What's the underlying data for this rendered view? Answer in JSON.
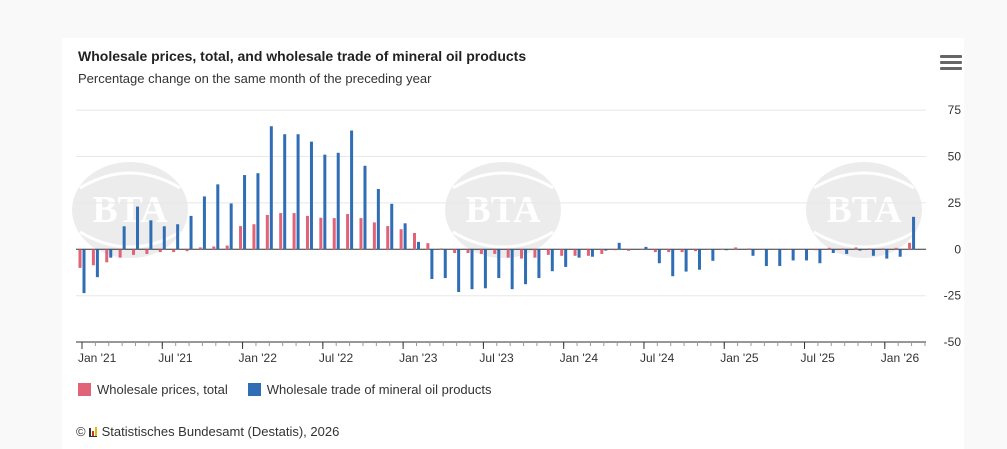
{
  "header": {
    "title": "Wholesale prices, total, and wholesale trade of mineral oil products",
    "subtitle": "Percentage change on the same month of the preceding year",
    "menu_icon": "hamburger-menu-icon"
  },
  "legend": [
    {
      "label": "Wholesale prices, total",
      "color": "#e06377"
    },
    {
      "label": "Wholesale trade of mineral oil products",
      "color": "#2f6db5"
    }
  ],
  "credits": {
    "copyright": "©",
    "text": "Statistisches Bundesamt (Destatis), 2026"
  },
  "watermark": "BTA",
  "chart_data": {
    "type": "bar",
    "title": "Wholesale prices, total, and wholesale trade of mineral oil products",
    "subtitle": "Percentage change on the same month of the preceding year",
    "xlabel": "",
    "ylabel": "",
    "ylim": [
      -50,
      75
    ],
    "y_ticks": [
      75,
      50,
      25,
      0,
      -25,
      -50
    ],
    "y_axis_position": "right",
    "grid": true,
    "legend_position": "bottom-left",
    "x_tick_labels": [
      {
        "month_index": 0,
        "label": "Jan '21"
      },
      {
        "month_index": 6,
        "label": "Jul '21"
      },
      {
        "month_index": 12,
        "label": "Jan '22"
      },
      {
        "month_index": 18,
        "label": "Jul '22"
      },
      {
        "month_index": 24,
        "label": "Jan '23"
      },
      {
        "month_index": 30,
        "label": "Jul '23"
      },
      {
        "month_index": 36,
        "label": "Jan '24"
      },
      {
        "month_index": 42,
        "label": "Jul '24"
      },
      {
        "month_index": 48,
        "label": "Jan '25"
      },
      {
        "month_index": 54,
        "label": "Jul '25"
      },
      {
        "month_index": 60,
        "label": "Jan '26"
      }
    ],
    "x_start": "Jan 2021",
    "x_end": "Mar 2026",
    "series": [
      {
        "name": "Wholesale prices, total",
        "color": "#e06377",
        "values": [
          -10,
          -8.6,
          -7,
          -4.5,
          -3,
          -2.5,
          -1.5,
          -1.5,
          -1,
          1,
          1.5,
          2,
          12.5,
          13.5,
          18.5,
          19.5,
          19.5,
          18,
          17,
          16.8,
          19,
          16.8,
          14.5,
          12.5,
          10.8,
          8.8,
          3.3,
          0.5,
          -2,
          -2,
          -2.5,
          -2.5,
          -4.5,
          -5,
          -4.5,
          -3,
          -3.5,
          -3.5,
          -3.5,
          -2.5,
          -0.5,
          -0.8,
          0,
          -1.5,
          -1.5,
          -1.5,
          -1,
          0,
          0.3,
          1,
          0.5,
          0,
          0,
          0,
          0,
          -0.5,
          0.8,
          0.5,
          1,
          0.5,
          0.5,
          0.8,
          3.5
        ]
      },
      {
        "name": "Wholesale trade of mineral oil products",
        "color": "#2f6db5",
        "values": [
          -23.6,
          -15,
          -4.5,
          12.4,
          23,
          15.6,
          12.4,
          13.5,
          18,
          28.5,
          35,
          24.7,
          40,
          41,
          66.3,
          62,
          62,
          58,
          51,
          52,
          64,
          45,
          32.5,
          24.5,
          14,
          4,
          -16,
          -15.5,
          -23,
          -21.5,
          -21,
          -15.5,
          -21.5,
          -18.8,
          -15.5,
          -11.8,
          -9.5,
          -4.5,
          -4,
          -0.7,
          3.5,
          0,
          1.3,
          -7.5,
          -14.5,
          -12,
          -11,
          -6.2,
          -0.5,
          0,
          -3.5,
          -9,
          -9,
          -6,
          -6,
          -7.5,
          -2,
          -2.5,
          -0.7,
          -3.5,
          -5,
          -4,
          17.5
        ]
      }
    ]
  }
}
